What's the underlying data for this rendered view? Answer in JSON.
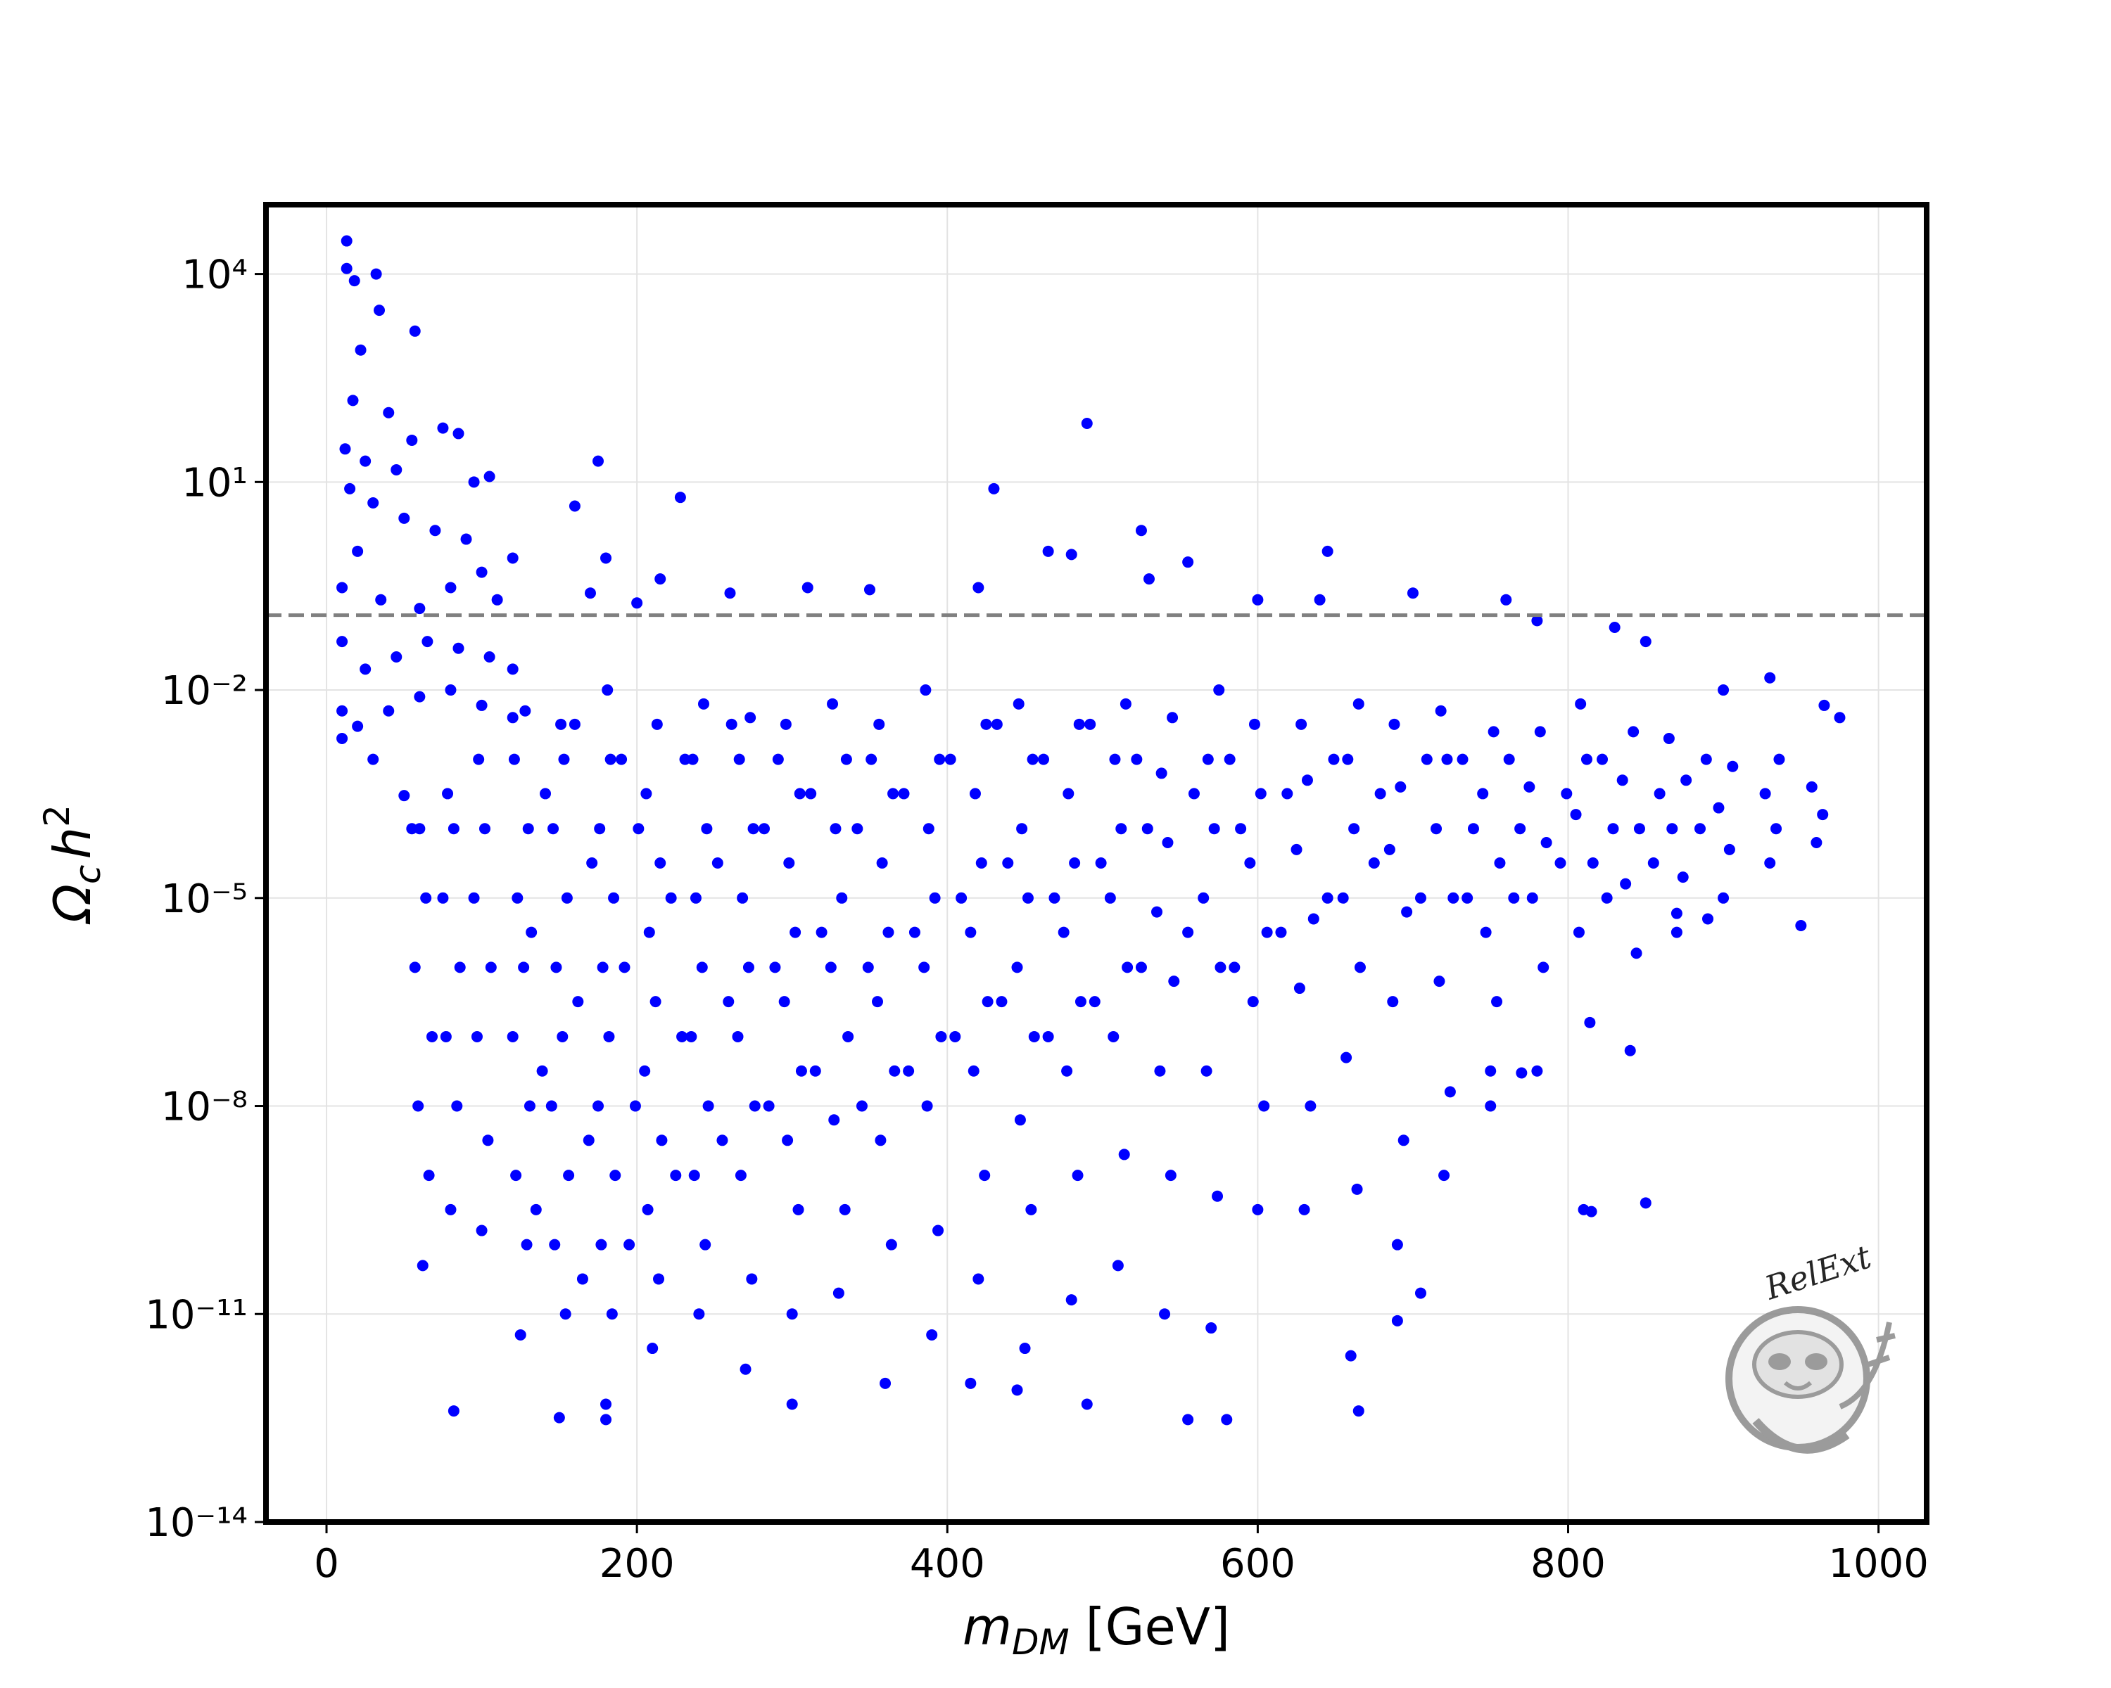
{
  "chart_data": {
    "type": "scatter",
    "x_label": [
      "m",
      "DM",
      " [GeV]"
    ],
    "y_label": [
      "Ω",
      "c",
      "h",
      "2"
    ],
    "watermark": "RelExt",
    "y_scale": "log",
    "grid": true,
    "xlim": [
      -39,
      1031
    ],
    "ylim": [
      1e-14,
      100000
    ],
    "xticks": [
      0,
      200,
      400,
      600,
      800,
      1000
    ],
    "yticks": [
      {
        "value": 10000,
        "label": "10⁴"
      },
      {
        "value": 10,
        "label": "10¹"
      },
      {
        "value": 0.01,
        "label": "10⁻²"
      },
      {
        "value": 1e-05,
        "label": "10⁻⁵"
      },
      {
        "value": 1e-08,
        "label": "10⁻⁸"
      },
      {
        "value": 1e-11,
        "label": "10⁻¹¹"
      },
      {
        "value": 1e-14,
        "label": "10⁻¹⁴"
      }
    ],
    "hline": {
      "y": 0.12,
      "color": "#808080",
      "style": "dashed"
    },
    "series": [
      {
        "color": "#0000ff",
        "x": [
          62,
          66,
          59,
          68,
          57,
          64,
          60,
          80,
          84,
          77,
          86,
          75,
          82,
          78,
          100,
          104,
          97,
          106,
          95,
          102,
          98,
          125,
          129,
          122,
          131,
          120,
          127,
          123,
          130,
          121,
          128,
          150,
          154,
          147,
          156,
          145,
          152,
          148,
          155,
          146,
          153,
          151,
          180,
          184,
          177,
          186,
          175,
          182,
          178,
          185,
          176,
          183,
          181,
          210,
          214,
          207,
          216,
          205,
          212,
          208,
          215,
          206,
          213,
          240,
          244,
          237,
          246,
          235,
          242,
          238,
          245,
          236,
          243,
          270,
          274,
          267,
          276,
          265,
          272,
          268,
          275,
          266,
          273,
          300,
          304,
          297,
          306,
          295,
          302,
          298,
          305,
          296,
          330,
          334,
          327,
          336,
          325,
          332,
          328,
          335,
          326,
          360,
          364,
          357,
          366,
          355,
          362,
          358,
          365,
          356,
          390,
          394,
          387,
          396,
          385,
          392,
          388,
          395,
          386,
          420,
          424,
          417,
          426,
          415,
          422,
          418,
          425,
          450,
          454,
          447,
          456,
          445,
          452,
          448,
          455,
          446,
          480,
          484,
          477,
          486,
          475,
          482,
          478,
          485,
          510,
          514,
          507,
          516,
          505,
          512,
          508,
          515,
          540,
          544,
          537,
          546,
          535,
          542,
          538,
          545,
          570,
          574,
          567,
          576,
          565,
          572,
          568,
          575,
          600,
          604,
          597,
          606,
          595,
          602,
          598,
          630,
          634,
          627,
          636,
          625,
          632,
          628,
          660,
          664,
          657,
          666,
          655,
          662,
          658,
          665,
          690,
          694,
          687,
          696,
          685,
          692,
          688,
          720,
          724,
          717,
          726,
          715,
          722,
          718,
          750,
          754,
          747,
          756,
          745,
          752,
          780,
          784,
          777,
          786,
          775,
          782,
          810,
          814,
          807,
          816,
          805,
          812,
          808,
          840,
          844,
          837,
          846,
          835,
          842,
          870,
          874,
          867,
          876,
          865,
          900,
          904,
          897,
          906,
          930,
          934,
          927,
          936,
          960,
          964,
          957,
          135,
          139,
          132,
          141,
          165,
          169,
          162,
          171,
          160,
          195,
          199,
          192,
          201,
          190,
          225,
          229,
          222,
          231,
          255,
          259,
          252,
          261,
          285,
          289,
          282,
          291,
          315,
          319,
          312,
          345,
          349,
          342,
          351,
          375,
          379,
          372,
          405,
          409,
          402,
          435,
          439,
          432,
          465,
          469,
          462,
          495,
          499,
          492,
          525,
          529,
          522,
          555,
          559,
          585,
          589,
          582,
          615,
          619,
          645,
          649,
          675,
          679,
          705,
          709,
          735,
          739,
          732,
          765,
          769,
          762,
          795,
          799,
          825,
          829,
          822,
          855,
          859,
          885,
          889,
          13,
          13,
          18,
          32,
          34,
          57,
          22,
          17,
          40,
          75,
          85,
          55,
          12,
          25,
          45,
          95,
          105,
          15,
          30,
          50,
          70,
          90,
          120,
          100,
          20,
          10,
          35,
          60,
          80,
          110,
          10,
          25,
          45,
          65,
          85,
          105,
          120,
          10,
          20,
          40,
          60,
          80,
          100,
          120,
          10,
          30,
          50,
          55,
          175,
          228,
          160,
          180,
          430,
          490,
          525,
          465,
          480,
          555,
          645,
          215,
          170,
          310,
          200,
          260,
          350,
          420,
          530,
          600,
          700,
          760,
          640,
          830,
          900,
          930,
          975,
          965,
          850,
          780,
          82,
          180,
          300,
          415,
          445,
          490,
          555,
          580,
          665,
          705,
          690,
          815,
          850,
          750,
          770,
          870,
          890,
          950
        ],
        "values": [
          5e-11,
          1e-09,
          1e-08,
          1e-07,
          1e-06,
          1e-05,
          0.0001,
          3.2e-10,
          1e-08,
          1e-07,
          1e-06,
          1e-05,
          0.0001,
          0.00032,
          1.6e-10,
          3.2e-09,
          1e-07,
          1e-06,
          1e-05,
          0.0001,
          0.001,
          5e-12,
          1e-10,
          1e-09,
          1e-08,
          1e-07,
          1e-06,
          1e-05,
          0.0001,
          0.001,
          0.005,
          3.2e-13,
          1e-11,
          1e-10,
          1e-09,
          1e-08,
          1e-07,
          1e-06,
          1e-05,
          0.0001,
          0.001,
          0.0032,
          5e-13,
          1e-11,
          1e-10,
          1e-09,
          1e-08,
          1e-07,
          1e-06,
          1e-05,
          0.0001,
          0.001,
          0.01,
          3.2e-12,
          3.2e-11,
          3.2e-10,
          3.2e-09,
          3.2e-08,
          3.2e-07,
          3.2e-06,
          3.2e-05,
          0.00032,
          0.0032,
          1e-11,
          1e-10,
          1e-09,
          1e-08,
          1e-07,
          1e-06,
          1e-05,
          0.0001,
          0.001,
          0.0063,
          1.6e-12,
          3.2e-11,
          1e-09,
          1e-08,
          1e-07,
          1e-06,
          1e-05,
          0.0001,
          0.001,
          0.004,
          1e-11,
          3.2e-10,
          3.2e-09,
          3.2e-08,
          3.2e-07,
          3.2e-06,
          3.2e-05,
          0.00032,
          0.0032,
          2e-11,
          3.2e-10,
          6.3e-09,
          1e-07,
          1e-06,
          1e-05,
          0.0001,
          0.001,
          0.0063,
          1e-12,
          1e-10,
          3.2e-09,
          3.2e-08,
          3.2e-07,
          3.2e-06,
          3.2e-05,
          0.00032,
          0.0032,
          5e-12,
          1.6e-10,
          1e-08,
          1e-07,
          1e-06,
          1e-05,
          0.0001,
          0.001,
          0.01,
          3.2e-11,
          1e-09,
          3.2e-08,
          3.2e-07,
          3.2e-06,
          3.2e-05,
          0.00032,
          0.0032,
          3.2e-12,
          3.2e-10,
          6.3e-09,
          1e-07,
          1e-06,
          1e-05,
          0.0001,
          0.001,
          0.0063,
          1.6e-11,
          1e-09,
          3.2e-08,
          3.2e-07,
          3.2e-06,
          3.2e-05,
          0.00032,
          0.0032,
          5e-11,
          2e-09,
          1e-07,
          1e-06,
          1e-05,
          0.0001,
          0.001,
          0.0063,
          1e-11,
          1e-09,
          3.2e-08,
          6.3e-07,
          6.3e-06,
          6.3e-05,
          0.00063,
          0.004,
          6.3e-12,
          5e-10,
          3.2e-08,
          1e-06,
          1e-05,
          0.0001,
          0.001,
          0.01,
          3.2e-10,
          1e-08,
          3.2e-07,
          3.2e-06,
          3.2e-05,
          0.00032,
          0.0032,
          3.2e-10,
          1e-08,
          5e-07,
          5e-06,
          5e-05,
          0.0005,
          0.0032,
          2.5e-12,
          6.3e-10,
          5e-08,
          1e-06,
          1e-05,
          0.0001,
          0.001,
          0.0063,
          1e-10,
          3.2e-09,
          3.2e-07,
          6.3e-06,
          5e-05,
          0.0004,
          0.0032,
          1e-09,
          1.6e-08,
          6.3e-07,
          1e-05,
          0.0001,
          0.001,
          0.005,
          3.2e-08,
          3.2e-07,
          3.2e-06,
          3.2e-05,
          0.00032,
          0.0025,
          3.2e-08,
          1e-06,
          1e-05,
          6.3e-05,
          0.0004,
          0.0025,
          3.2e-10,
          1.6e-07,
          3.2e-06,
          3.2e-05,
          0.00016,
          0.001,
          0.0063,
          6.3e-08,
          1.6e-06,
          1.6e-05,
          0.0001,
          0.0005,
          0.0025,
          3.2e-06,
          2e-05,
          0.0001,
          0.0005,
          0.002,
          1e-05,
          5e-05,
          0.0002,
          0.00079,
          3.2e-05,
          0.0001,
          0.00032,
          0.001,
          6.3e-05,
          0.00016,
          0.0004,
          3.2e-10,
          3.2e-08,
          3.2e-06,
          0.00032,
          3.2e-11,
          3.2e-09,
          3.2e-07,
          3.2e-05,
          0.0032,
          1e-10,
          1e-08,
          1e-06,
          0.0001,
          0.001,
          1e-09,
          1e-07,
          1e-05,
          0.001,
          3.2e-09,
          3.2e-07,
          3.2e-05,
          0.0032,
          1e-08,
          1e-06,
          0.0001,
          0.001,
          3.2e-08,
          3.2e-06,
          0.00032,
          1e-08,
          1e-06,
          0.0001,
          0.001,
          3.2e-08,
          3.2e-06,
          0.00032,
          1e-07,
          1e-05,
          0.001,
          3.2e-07,
          3.2e-05,
          0.0032,
          1e-07,
          1e-05,
          0.001,
          3.2e-07,
          3.2e-05,
          0.0032,
          1e-06,
          0.0001,
          0.001,
          3.2e-06,
          0.00032,
          1e-06,
          0.0001,
          0.001,
          3.2e-06,
          0.00032,
          1e-05,
          0.001,
          3.2e-05,
          0.00032,
          1e-05,
          0.001,
          1e-05,
          0.0001,
          0.001,
          1e-05,
          0.0001,
          0.001,
          3.2e-05,
          0.00032,
          1e-05,
          0.0001,
          0.001,
          3.2e-05,
          0.00032,
          0.0001,
          0.001,
          30000,
          12000,
          8000,
          10000,
          3000,
          1500,
          800,
          150,
          100,
          60,
          50,
          40,
          30,
          20,
          15,
          10,
          12,
          8,
          5,
          3,
          2,
          1.5,
          0.8,
          0.5,
          1,
          0.3,
          0.2,
          0.15,
          0.3,
          0.2,
          0.05,
          0.02,
          0.03,
          0.05,
          0.04,
          0.03,
          0.02,
          0.005,
          0.003,
          0.005,
          0.008,
          0.01,
          0.006,
          0.004,
          0.002,
          0.001,
          0.0003,
          0.0001,
          20,
          6,
          4.5,
          0.8,
          8,
          70,
          2,
          1,
          0.9,
          0.7,
          1,
          0.4,
          0.25,
          0.3,
          0.18,
          0.25,
          0.28,
          0.3,
          0.4,
          0.2,
          0.25,
          0.2,
          0.2,
          0.08,
          0.01,
          0.015,
          0.004,
          0.006,
          0.05,
          0.1,
          4e-13,
          3e-13,
          5e-13,
          1e-12,
          8e-13,
          5e-13,
          3e-13,
          3e-13,
          4e-13,
          2e-11,
          8e-12,
          3e-10,
          4e-10,
          1e-08,
          3e-08,
          6e-06,
          5e-06,
          4e-06
        ]
      }
    ]
  }
}
